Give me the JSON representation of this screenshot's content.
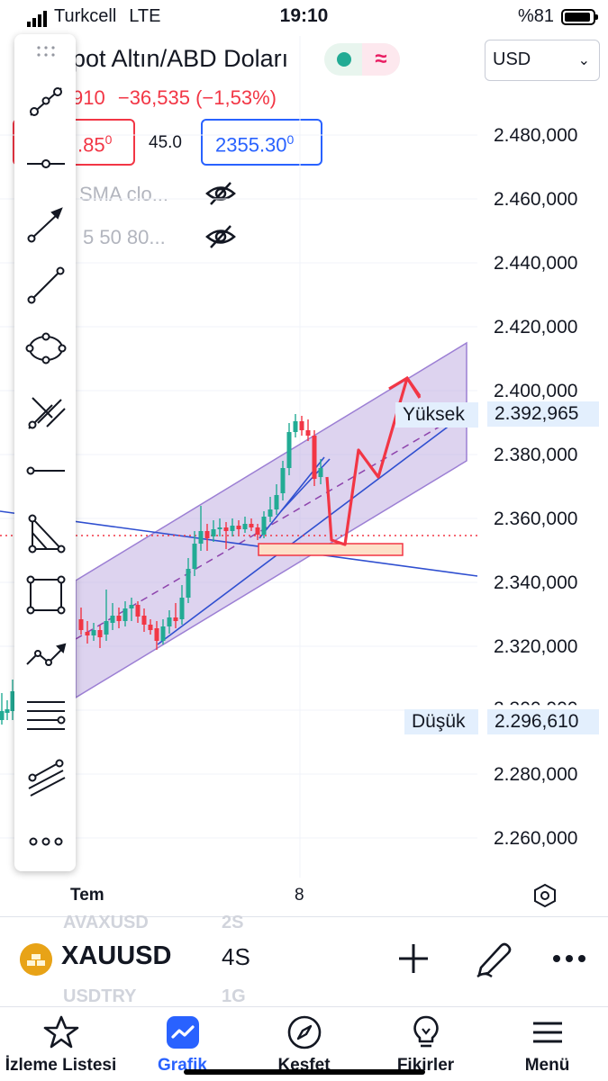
{
  "status_bar": {
    "carrier": "Turkcell",
    "network": "LTE",
    "time": "19:10",
    "battery": "%81",
    "battery_level": 0.81
  },
  "header": {
    "symbol_title": "pot Altın/ABD Doları",
    "currency": "USD",
    "change_partial": "910",
    "change_abs": "−36,535",
    "change_pct": "(−1,53%)",
    "sell_price_main": ".85",
    "sell_price_sup": "0",
    "spread": "45.0",
    "buy_price_main": "2355.30",
    "buy_price_sup": "0",
    "indicator_1": "SMA clo...",
    "indicator_2": "5 50 80..."
  },
  "price_axis": {
    "labels": [
      "2.480,000",
      "2.460,000",
      "2.440,000",
      "2.420,000",
      "2.400,000",
      "2.380,000",
      "2.360,000",
      "2.340,000",
      "2.320,000",
      "2.300,000",
      "2.280,000",
      "2.260,000"
    ],
    "high_label": "Yüksek",
    "high_value": "2.392,965",
    "low_label": "Düşük",
    "low_value": "2.296,610"
  },
  "time_axis": {
    "labels": [
      "Tem",
      "8"
    ]
  },
  "symbol_bar": {
    "ghost_top": "AVAXUSD",
    "ghost_top_tf": "2S",
    "symbol": "XAUUSD",
    "timeframe": "4S",
    "ghost_bottom": "USDTRY",
    "ghost_bottom_tf": "1G"
  },
  "toolbar": {
    "tools": [
      "trend-line-tool",
      "horizontal-ray-tool",
      "arrow-tool",
      "line-tool",
      "ellipse-tool",
      "pitchfork-tool",
      "horizontal-line-tool",
      "triangle-tool",
      "rectangle-tool",
      "path-tool",
      "fib-retracement-tool",
      "parallel-channel-tool",
      "more-tools"
    ]
  },
  "bottom_nav": {
    "items": [
      {
        "label": "İzleme Listesi",
        "icon": "star-icon"
      },
      {
        "label": "Grafik",
        "icon": "chart-icon"
      },
      {
        "label": "Keşfet",
        "icon": "compass-icon"
      },
      {
        "label": "Fikirler",
        "icon": "lightbulb-icon"
      },
      {
        "label": "Menü",
        "icon": "menu-icon"
      }
    ],
    "active": 1
  },
  "colors": {
    "up": "#22ab94",
    "down": "#f23645",
    "accent": "#2962ff",
    "channel": "#b39ddb",
    "drawing": "#f23645"
  }
}
